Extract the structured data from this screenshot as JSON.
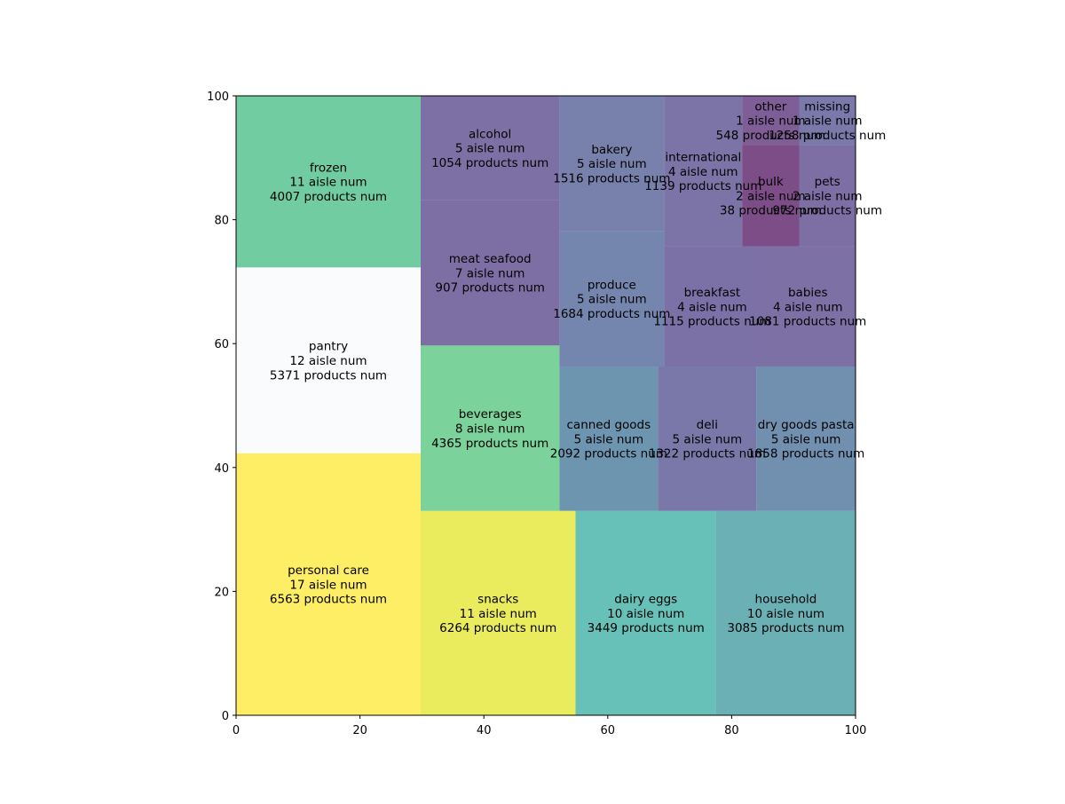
{
  "chart_data": {
    "type": "treemap",
    "xlim": [
      0,
      100
    ],
    "ylim": [
      0,
      100
    ],
    "x_ticks": [
      0,
      20,
      40,
      60,
      80,
      100
    ],
    "y_ticks": [
      0,
      20,
      40,
      60,
      80,
      100
    ],
    "grid": false,
    "cells": [
      {
        "name": "personal care",
        "aisle": 17,
        "products": 6563,
        "x": 0,
        "y": 0,
        "w": 29.8,
        "h": 42.3,
        "color": "#fde725"
      },
      {
        "name": "pantry",
        "aisle": 12,
        "products": 5371,
        "x": 0,
        "y": 42.3,
        "w": 29.8,
        "h": 30.0,
        "color": "#f8f9fc"
      },
      {
        "name": "frozen",
        "aisle": 11,
        "products": 4007,
        "x": 0,
        "y": 72.3,
        "w": 29.8,
        "h": 27.7,
        "color": "#35b779"
      },
      {
        "name": "snacks",
        "aisle": 11,
        "products": 6264,
        "x": 29.8,
        "y": 0,
        "w": 25.0,
        "h": 33.0,
        "color": "#e2e418"
      },
      {
        "name": "dairy eggs",
        "aisle": 10,
        "products": 3449,
        "x": 54.8,
        "y": 0,
        "w": 22.7,
        "h": 33.0,
        "color": "#26a69a"
      },
      {
        "name": "household",
        "aisle": 10,
        "products": 3085,
        "x": 77.5,
        "y": 0,
        "w": 22.5,
        "h": 33.0,
        "color": "#2c8f96"
      },
      {
        "name": "beverages",
        "aisle": 8,
        "products": 4365,
        "x": 29.8,
        "y": 33.0,
        "w": 22.4,
        "h": 26.7,
        "color": "#44bf70"
      },
      {
        "name": "meat seafood",
        "aisle": 7,
        "products": 907,
        "x": 29.8,
        "y": 59.7,
        "w": 22.4,
        "h": 23.5,
        "color": "#46327e"
      },
      {
        "name": "alcohol",
        "aisle": 5,
        "products": 1054,
        "x": 29.8,
        "y": 83.2,
        "w": 22.4,
        "h": 16.8,
        "color": "#46337f"
      },
      {
        "name": "canned goods",
        "aisle": 5,
        "products": 2092,
        "x": 52.2,
        "y": 33.0,
        "w": 15.9,
        "h": 23.3,
        "color": "#31688e"
      },
      {
        "name": "deli",
        "aisle": 5,
        "products": 1322,
        "x": 68.1,
        "y": 33.0,
        "w": 15.9,
        "h": 23.3,
        "color": "#423f85"
      },
      {
        "name": "dry goods pasta",
        "aisle": 5,
        "products": 1858,
        "x": 84.0,
        "y": 33.0,
        "w": 16.0,
        "h": 23.3,
        "color": "#355f8d"
      },
      {
        "name": "produce",
        "aisle": 5,
        "products": 1684,
        "x": 52.2,
        "y": 56.3,
        "w": 16.9,
        "h": 21.9,
        "color": "#3b528b"
      },
      {
        "name": "bakery",
        "aisle": 5,
        "products": 1516,
        "x": 52.2,
        "y": 78.2,
        "w": 16.9,
        "h": 21.8,
        "color": "#3e4a89"
      },
      {
        "name": "breakfast",
        "aisle": 4,
        "products": 1115,
        "x": 69.1,
        "y": 56.3,
        "w": 15.5,
        "h": 19.4,
        "color": "#453581"
      },
      {
        "name": "babies",
        "aisle": 4,
        "products": 1081,
        "x": 84.6,
        "y": 56.3,
        "w": 15.4,
        "h": 19.4,
        "color": "#46337f"
      },
      {
        "name": "international",
        "aisle": 4,
        "products": 1139,
        "x": 69.1,
        "y": 75.7,
        "w": 12.6,
        "h": 24.3,
        "color": "#453781"
      },
      {
        "name": "bulk",
        "aisle": 2,
        "products": 38,
        "x": 81.7,
        "y": 75.7,
        "w": 9.2,
        "h": 16.4,
        "color": "#440154"
      },
      {
        "name": "pets",
        "aisle": 2,
        "products": 972,
        "x": 90.9,
        "y": 75.7,
        "w": 9.1,
        "h": 16.4,
        "color": "#46307e"
      },
      {
        "name": "other",
        "aisle": 1,
        "products": 548,
        "x": 81.7,
        "y": 92.1,
        "w": 9.2,
        "h": 7.9,
        "color": "#48186a"
      },
      {
        "name": "missing",
        "aisle": 1,
        "products": 1258,
        "x": 90.9,
        "y": 92.1,
        "w": 9.1,
        "h": 7.9,
        "color": "#424086"
      }
    ],
    "line_suffix_aisle": " aisle num",
    "line_suffix_products": " products num"
  },
  "colors": {
    "axis": "#000000",
    "background": "#ffffff"
  }
}
